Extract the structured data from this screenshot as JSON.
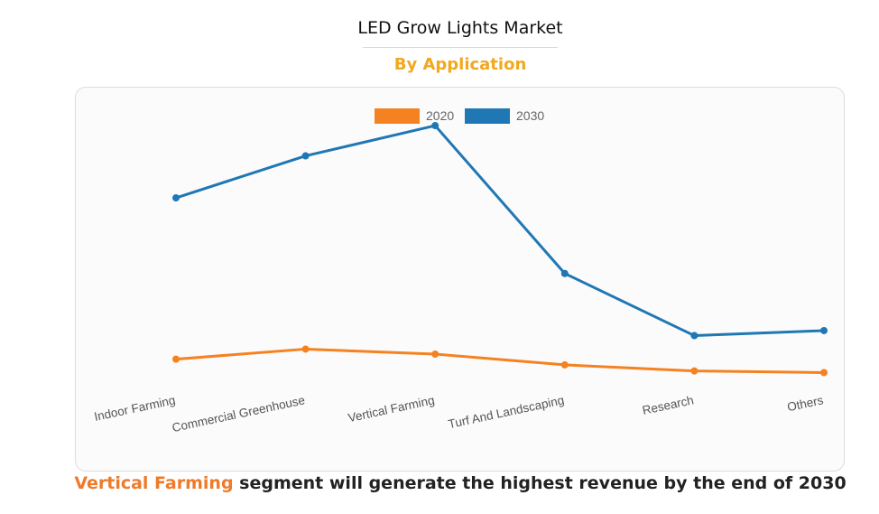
{
  "header": {
    "title": "LED Grow Lights Market",
    "subtitle": "By Application"
  },
  "footer": {
    "highlight": "Vertical Farming",
    "text": " segment will generate the highest revenue by the end of 2030"
  },
  "chart_data": {
    "type": "line",
    "categories": [
      "Indoor Farming",
      "Commercial Greenhouse",
      "Vertical Farming",
      "Turf And Landscaping",
      "Research",
      "Others"
    ],
    "series": [
      {
        "name": "2020",
        "color": "#f58220",
        "values": [
          20,
          23,
          21.5,
          18.3,
          16.5,
          16
        ]
      },
      {
        "name": "2030",
        "color": "#1f77b4",
        "values": [
          68,
          80.5,
          89.5,
          45.5,
          27,
          28.5
        ]
      }
    ],
    "ylim": [
      0,
      100
    ],
    "legend": "top-center",
    "grid": false
  }
}
